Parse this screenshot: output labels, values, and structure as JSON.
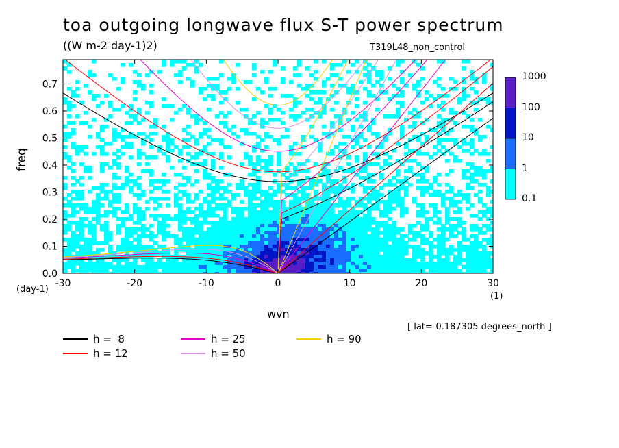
{
  "title": "toa outgoing longwave flux S-T power spectrum",
  "units_label": "((W m-2 day-1)2)",
  "run_name": "T319L48_non_control",
  "lat_note": "[ lat=-0.187305 degrees_north ]",
  "colors": {
    "level_0_1": "#00ffff",
    "level_1_10": "#1a6eff",
    "level_10_100": "#0014c8",
    "level_100_1000": "#5a1ec8",
    "h8": "#000000",
    "h12": "#ff0000",
    "h25": "#e000c8",
    "h50": "#d890e0",
    "h90": "#f0d000"
  },
  "chart_data": {
    "type": "heatmap",
    "title": "toa outgoing longwave flux S-T power spectrum",
    "xlabel": "wvn",
    "ylabel": "freq",
    "x_unit": "(1)",
    "y_unit": "(day-1)",
    "xlim": [
      -30,
      30
    ],
    "ylim": [
      0,
      0.79
    ],
    "x_ticks": [
      "-30",
      "-20",
      "-10",
      "0",
      "10",
      "20",
      "30"
    ],
    "y_ticks": [
      "0.0",
      "0.1",
      "0.2",
      "0.3",
      "0.4",
      "0.5",
      "0.6",
      "0.7"
    ],
    "colorbar_levels": [
      "1000",
      "100",
      "10",
      "1",
      "0.1"
    ],
    "dispersion_curves": [
      {
        "name": "h =  8",
        "color": "#000000"
      },
      {
        "name": "h = 12",
        "color": "#ff0000"
      },
      {
        "name": "h = 25",
        "color": "#e000c8"
      },
      {
        "name": "h = 50",
        "color": "#d890e0"
      },
      {
        "name": "h = 90",
        "color": "#f0d000"
      }
    ],
    "grid": false
  }
}
